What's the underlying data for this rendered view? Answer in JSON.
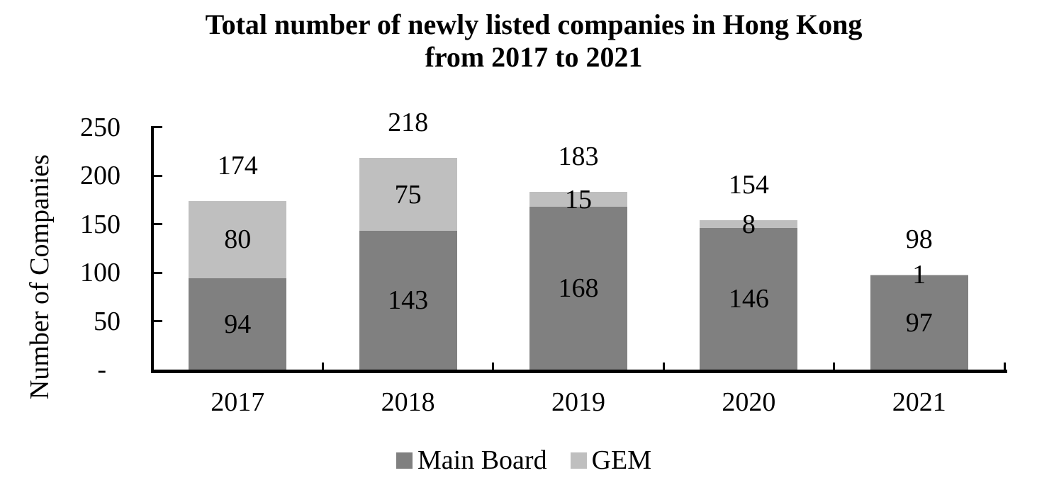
{
  "title": {
    "line1": "Total number of newly listed companies in Hong Kong",
    "line2": "from 2017 to 2021"
  },
  "chart_data": {
    "type": "bar",
    "stacked": true,
    "title": "Total number of newly listed companies in Hong Kong from 2017 to 2021",
    "categories": [
      "2017",
      "2018",
      "2019",
      "2020",
      "2021"
    ],
    "series": [
      {
        "name": "Main Board",
        "color": "#808080",
        "values": [
          94,
          143,
          168,
          146,
          97
        ]
      },
      {
        "name": "GEM",
        "color": "#BFBFBF",
        "values": [
          80,
          75,
          15,
          8,
          1
        ]
      }
    ],
    "totals": [
      174,
      218,
      183,
      154,
      98
    ],
    "xlabel": "",
    "ylabel": "Number of Companies",
    "ylim": [
      0,
      250
    ],
    "y_ticks": [
      {
        "value": 250,
        "label": "250"
      },
      {
        "value": 200,
        "label": "200"
      },
      {
        "value": 150,
        "label": "150"
      },
      {
        "value": 100,
        "label": "100"
      },
      {
        "value": 50,
        "label": "50"
      },
      {
        "value": 0,
        "label": "-"
      }
    ],
    "grid": false,
    "legend_position": "bottom",
    "legend": [
      "Main Board",
      "GEM"
    ],
    "text_color": "#000000",
    "axis_color": "#000000"
  }
}
